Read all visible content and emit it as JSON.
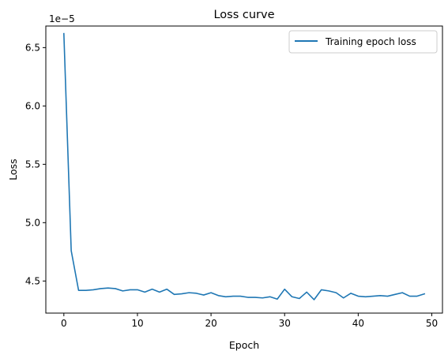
{
  "chart_data": {
    "type": "line",
    "title": "Loss curve",
    "xlabel": "Epoch",
    "ylabel": "Loss",
    "y_scale_label": "1e−5",
    "xlim": [
      -2.45,
      51.45
    ],
    "ylim": [
      4.225,
      6.685
    ],
    "x_ticks": [
      0,
      10,
      20,
      30,
      40,
      50
    ],
    "x_tick_labels": [
      "0",
      "10",
      "20",
      "30",
      "40",
      "50"
    ],
    "y_ticks": [
      4.5,
      5.0,
      5.5,
      6.0,
      6.5
    ],
    "y_tick_labels": [
      "4.5",
      "5.0",
      "5.5",
      "6.0",
      "6.5"
    ],
    "grid": false,
    "legend_position": "upper right",
    "series": [
      {
        "name": "Training epoch loss",
        "color": "#1f77b4",
        "x": [
          0,
          1,
          2,
          3,
          4,
          5,
          6,
          7,
          8,
          9,
          10,
          11,
          12,
          13,
          14,
          15,
          16,
          17,
          18,
          19,
          20,
          21,
          22,
          23,
          24,
          25,
          26,
          27,
          28,
          29,
          30,
          31,
          32,
          33,
          34,
          35,
          36,
          37,
          38,
          39,
          40,
          41,
          42,
          43,
          44,
          45,
          46,
          47,
          48,
          49
        ],
        "y": [
          6.62,
          4.76,
          4.42,
          4.42,
          4.425,
          4.435,
          4.44,
          4.435,
          4.415,
          4.425,
          4.425,
          4.405,
          4.43,
          4.405,
          4.43,
          4.385,
          4.39,
          4.4,
          4.395,
          4.38,
          4.4,
          4.375,
          4.365,
          4.37,
          4.37,
          4.36,
          4.36,
          4.355,
          4.365,
          4.345,
          4.43,
          4.365,
          4.35,
          4.405,
          4.34,
          4.425,
          4.415,
          4.4,
          4.355,
          4.395,
          4.37,
          4.365,
          4.37,
          4.375,
          4.37,
          4.385,
          4.4,
          4.37,
          4.37,
          4.39
        ]
      }
    ]
  }
}
